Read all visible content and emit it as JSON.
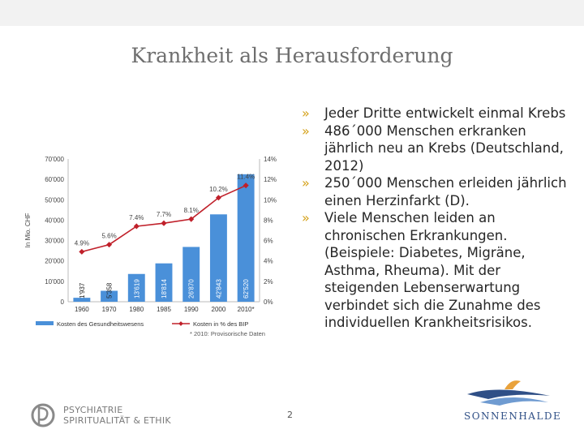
{
  "slide": {
    "title": "Krankheit als Herausforderung",
    "page_number": "2"
  },
  "bullets": [
    "Jeder Dritte entwickelt einmal Krebs",
    "486´000 Menschen erkranken jährlich neu an Krebs (Deutschland, 2012)",
    "250´000 Menschen erleiden jährlich einen Herzinfarkt (D).",
    "Viele Menschen leiden an chronischen Erkrankungen. (Beispiele: Diabetes, Migräne, Asthma, Rheuma). Mit der steigenden Lebenserwartung verbindet sich die Zunahme des individuellen Krankheitsrisikos."
  ],
  "bullet_marker": "»",
  "logos": {
    "left_line1": "PSYCHIATRIE",
    "left_line2": "SPIRITUALITÄT & ETHIK",
    "right": "SONNENHALDE"
  },
  "colors": {
    "bar": "#4a90d9",
    "line": "#c0202a",
    "bullet_marker": "#d4a017",
    "title": "#6e6e6e"
  },
  "chart_data": {
    "type": "bar",
    "categories": [
      "1960",
      "1970",
      "1980",
      "1985",
      "1990",
      "2000",
      "2010*"
    ],
    "series": [
      {
        "name": "Kosten des Gesundheitswesens",
        "type": "bar",
        "axis": "left",
        "values": [
          1937,
          5358,
          13619,
          18814,
          26870,
          42843,
          62520
        ],
        "labels": [
          "1'937",
          "5'358",
          "13'619",
          "18'814",
          "26'870",
          "42'843",
          "62'520"
        ]
      },
      {
        "name": "Kosten in % des BIP",
        "type": "line",
        "axis": "right",
        "values": [
          4.9,
          5.6,
          7.4,
          7.7,
          8.1,
          10.2,
          11.4
        ],
        "labels": [
          "4.9%",
          "5.6%",
          "7.4%",
          "7.7%",
          "8.1%",
          "10.2%",
          "11.4%"
        ]
      }
    ],
    "ylabel": "In Mio. CHF",
    "ylim": [
      0,
      70000
    ],
    "yticks": [
      "0",
      "10'000",
      "20'000",
      "30'000",
      "40'000",
      "50'000",
      "60'000",
      "70'000"
    ],
    "y2lim": [
      0,
      14
    ],
    "y2ticks": [
      "0%",
      "2%",
      "4%",
      "6%",
      "8%",
      "10%",
      "12%",
      "14%"
    ],
    "footnote": "* 2010: Provisorische Daten",
    "grid": false,
    "legend": "bottom"
  }
}
